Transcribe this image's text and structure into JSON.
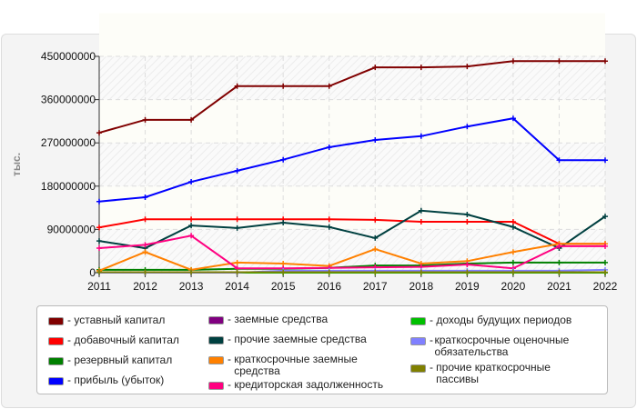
{
  "chart_data": {
    "type": "line",
    "title": "Динамика изменения пассивов",
    "ylabel": "тыс.",
    "xlabel": "",
    "x": [
      "2011",
      "2012",
      "2013",
      "2014",
      "2015",
      "2016",
      "2017",
      "2018",
      "2019",
      "2020",
      "2021",
      "2022"
    ],
    "ylim": [
      0,
      450000000
    ],
    "yticks": [
      "0",
      "90000000",
      "180000000",
      "270000000",
      "360000000",
      "450000000"
    ],
    "grid": true,
    "legend_position": "bottom",
    "series": [
      {
        "name": "уставный капитал",
        "color": "#800000",
        "values": [
          291000000,
          318000000,
          318000000,
          388000000,
          388000000,
          388000000,
          427000000,
          427000000,
          429000000,
          440000000,
          440000000,
          440000000
        ]
      },
      {
        "name": "добавочный капитал",
        "color": "#ff0000",
        "values": [
          94000000,
          111000000,
          111000000,
          111000000,
          111000000,
          111000000,
          110000000,
          106000000,
          106000000,
          106000000,
          60000000,
          60000000
        ]
      },
      {
        "name": "резервный капитал",
        "color": "#008000",
        "values": [
          6000000,
          6000000,
          6000000,
          8000000,
          8000000,
          10000000,
          15000000,
          15000000,
          19000000,
          21000000,
          21000000,
          21000000
        ]
      },
      {
        "name": "прибыль (убыток)",
        "color": "#0000ff",
        "values": [
          148000000,
          157000000,
          189000000,
          212000000,
          235000000,
          261000000,
          276000000,
          284000000,
          304000000,
          321000000,
          234000000,
          234000000
        ]
      },
      {
        "name": "заемные средства",
        "color": "#800080",
        "values": [
          0,
          0,
          0,
          0,
          0,
          0,
          0,
          0,
          0,
          0,
          0,
          0
        ]
      },
      {
        "name": "прочие заемные средства",
        "color": "#004040",
        "values": [
          66000000,
          51000000,
          98000000,
          93000000,
          104000000,
          95000000,
          72000000,
          129000000,
          121000000,
          95000000,
          51000000,
          117000000
        ]
      },
      {
        "name": "краткосрочные заемные средства",
        "color": "#ff8000",
        "values": [
          4000000,
          43000000,
          6000000,
          21000000,
          19000000,
          14000000,
          49000000,
          19000000,
          24000000,
          43000000,
          60000000,
          60000000
        ]
      },
      {
        "name": "кредиторская задолженность",
        "color": "#ff0080",
        "values": [
          51000000,
          58000000,
          77000000,
          9000000,
          9000000,
          10000000,
          11000000,
          12000000,
          17000000,
          9000000,
          55000000,
          55000000
        ]
      },
      {
        "name": "доходы будущих периодов",
        "color": "#00c000",
        "values": [
          0,
          0,
          0,
          0,
          0,
          0,
          0,
          0,
          0,
          0,
          0,
          0
        ]
      },
      {
        "name": "краткосрочные оценочные обязательства",
        "color": "#8080ff",
        "values": [
          0,
          0,
          0,
          0,
          4000000,
          4000000,
          4000000,
          4000000,
          4000000,
          4000000,
          4000000,
          6000000
        ]
      },
      {
        "name": "прочие краткосрочные пассивы",
        "color": "#808000",
        "values": [
          1000000,
          1000000,
          1000000,
          1000000,
          1000000,
          1000000,
          1000000,
          1000000,
          1000000,
          1000000,
          1000000,
          1000000
        ]
      }
    ]
  }
}
